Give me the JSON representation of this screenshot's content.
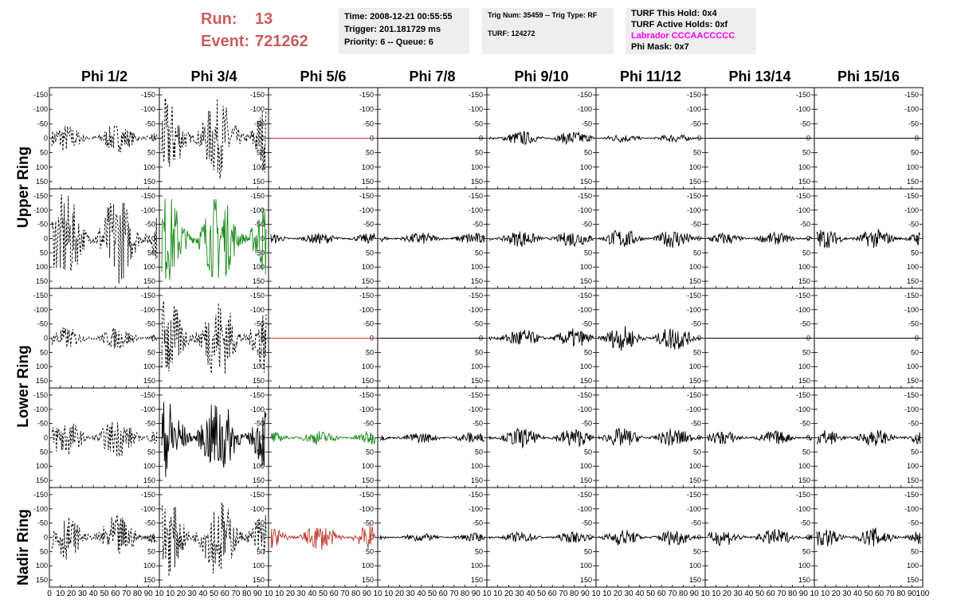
{
  "header": {
    "run_label": "Run:",
    "run_value": "13",
    "event_label": "Event:",
    "event_value": "721262",
    "time_line": "Time: 2008-12-21 00:55:55",
    "trigger_line": "Trigger: 201.181729 ms",
    "priority_line": "Priority: 6 -- Queue: 6",
    "trig_num_line": "Trig Num: 35459 -- Trig Type: RF",
    "turf_line": "TURF: 124272",
    "turf_hold_line": "TURF This Hold: 0x4",
    "turf_active_line": "TURF Active Holds: 0xf",
    "labrador_line": "Labrador CCCAACCCCC",
    "phi_mask_line": "Phi Mask: 0x7"
  },
  "columns": [
    "Phi 1/2",
    "Phi 3/4",
    "Phi 5/6",
    "Phi 7/8",
    "Phi 9/10",
    "Phi 11/12",
    "Phi 13/14",
    "Phi 15/16"
  ],
  "rings": [
    {
      "label": "Upper Ring"
    },
    {
      "label": "Lower Ring"
    },
    {
      "label": "Nadir Ring"
    }
  ],
  "colors": {
    "run_text": "#cd5c5c",
    "labrador_text": "#ff00ff",
    "green_trace": "#1a8a1a",
    "red_trace": "#c0392b",
    "black_trace": "#000000",
    "info_bg": "#eeeeee"
  },
  "chart_data": {
    "type": "line",
    "grid": false,
    "ylim": [
      -175,
      175
    ],
    "xlim": [
      0,
      100
    ],
    "y_ticks": [
      -150,
      -100,
      -50,
      0,
      50,
      100,
      150
    ],
    "x_ticks": [
      0,
      10,
      20,
      30,
      40,
      50,
      60,
      70,
      80,
      90,
      100
    ],
    "x_tick_labels_first": [
      "0",
      "10",
      "20",
      "30",
      "40",
      "50",
      "60",
      "70",
      "80",
      "90",
      "10"
    ],
    "x_tick_labels_mid": [
      "10",
      "20",
      "30",
      "40",
      "50",
      "60",
      "70",
      "80",
      "90",
      "10"
    ],
    "x_tick_labels_last": [
      "10",
      "20",
      "30",
      "40",
      "50",
      "60",
      "70",
      "80",
      "90",
      "100"
    ],
    "y_tick_labels": [
      "150",
      "100",
      "50",
      "0",
      "-50",
      "-100",
      "-150"
    ],
    "panels": [
      {
        "row": 0,
        "col": 0,
        "style": "dashed",
        "color": "black",
        "amplitude": 50
      },
      {
        "row": 0,
        "col": 1,
        "style": "dashed",
        "color": "black",
        "amplitude": 140
      },
      {
        "row": 0,
        "col": 2,
        "style": "flat",
        "color": "red",
        "amplitude": 0
      },
      {
        "row": 0,
        "col": 3,
        "style": "flat",
        "color": "black",
        "amplitude": 0
      },
      {
        "row": 0,
        "col": 4,
        "style": "solid",
        "color": "black",
        "amplitude": 25
      },
      {
        "row": 0,
        "col": 5,
        "style": "solid",
        "color": "black",
        "amplitude": 15
      },
      {
        "row": 0,
        "col": 6,
        "style": "flat",
        "color": "black",
        "amplitude": 0
      },
      {
        "row": 0,
        "col": 7,
        "style": "flat",
        "color": "black",
        "amplitude": 0
      },
      {
        "row": 1,
        "col": 0,
        "style": "dashed",
        "color": "black",
        "amplitude": 160
      },
      {
        "row": 1,
        "col": 1,
        "style": "solid",
        "color": "green",
        "amplitude": 160
      },
      {
        "row": 1,
        "col": 2,
        "style": "solid",
        "color": "black",
        "amplitude": 20
      },
      {
        "row": 1,
        "col": 3,
        "style": "solid",
        "color": "black",
        "amplitude": 22
      },
      {
        "row": 1,
        "col": 4,
        "style": "solid",
        "color": "black",
        "amplitude": 30
      },
      {
        "row": 1,
        "col": 5,
        "style": "solid",
        "color": "black",
        "amplitude": 35
      },
      {
        "row": 1,
        "col": 6,
        "style": "solid",
        "color": "black",
        "amplitude": 22
      },
      {
        "row": 1,
        "col": 7,
        "style": "solid",
        "color": "black",
        "amplitude": 35
      },
      {
        "row": 2,
        "col": 0,
        "style": "dashed",
        "color": "black",
        "amplitude": 40
      },
      {
        "row": 2,
        "col": 1,
        "style": "dashed",
        "color": "black",
        "amplitude": 150
      },
      {
        "row": 2,
        "col": 2,
        "style": "flat",
        "color": "red",
        "amplitude": 0
      },
      {
        "row": 2,
        "col": 3,
        "style": "flat",
        "color": "black",
        "amplitude": 0
      },
      {
        "row": 2,
        "col": 4,
        "style": "solid",
        "color": "black",
        "amplitude": 35
      },
      {
        "row": 2,
        "col": 5,
        "style": "solid",
        "color": "black",
        "amplitude": 45
      },
      {
        "row": 2,
        "col": 6,
        "style": "flat",
        "color": "black",
        "amplitude": 0
      },
      {
        "row": 2,
        "col": 7,
        "style": "flat",
        "color": "black",
        "amplitude": 0
      },
      {
        "row": 3,
        "col": 0,
        "style": "dashed",
        "color": "black",
        "amplitude": 70
      },
      {
        "row": 3,
        "col": 1,
        "style": "solid",
        "color": "black",
        "amplitude": 140
      },
      {
        "row": 3,
        "col": 2,
        "style": "solid",
        "color": "green",
        "amplitude": 25
      },
      {
        "row": 3,
        "col": 3,
        "style": "solid",
        "color": "black",
        "amplitude": 20
      },
      {
        "row": 3,
        "col": 4,
        "style": "solid",
        "color": "black",
        "amplitude": 35
      },
      {
        "row": 3,
        "col": 5,
        "style": "solid",
        "color": "black",
        "amplitude": 35
      },
      {
        "row": 3,
        "col": 6,
        "style": "solid",
        "color": "black",
        "amplitude": 25
      },
      {
        "row": 3,
        "col": 7,
        "style": "solid",
        "color": "black",
        "amplitude": 30
      },
      {
        "row": 4,
        "col": 0,
        "style": "dashed",
        "color": "black",
        "amplitude": 80
      },
      {
        "row": 4,
        "col": 1,
        "style": "dashed",
        "color": "black",
        "amplitude": 140
      },
      {
        "row": 4,
        "col": 2,
        "style": "solid",
        "color": "red",
        "amplitude": 45
      },
      {
        "row": 4,
        "col": 3,
        "style": "solid",
        "color": "black",
        "amplitude": 15
      },
      {
        "row": 4,
        "col": 4,
        "style": "solid",
        "color": "black",
        "amplitude": 20
      },
      {
        "row": 4,
        "col": 5,
        "style": "solid",
        "color": "black",
        "amplitude": 30
      },
      {
        "row": 4,
        "col": 6,
        "style": "solid",
        "color": "black",
        "amplitude": 30
      },
      {
        "row": 4,
        "col": 7,
        "style": "solid",
        "color": "black",
        "amplitude": 35
      }
    ]
  }
}
